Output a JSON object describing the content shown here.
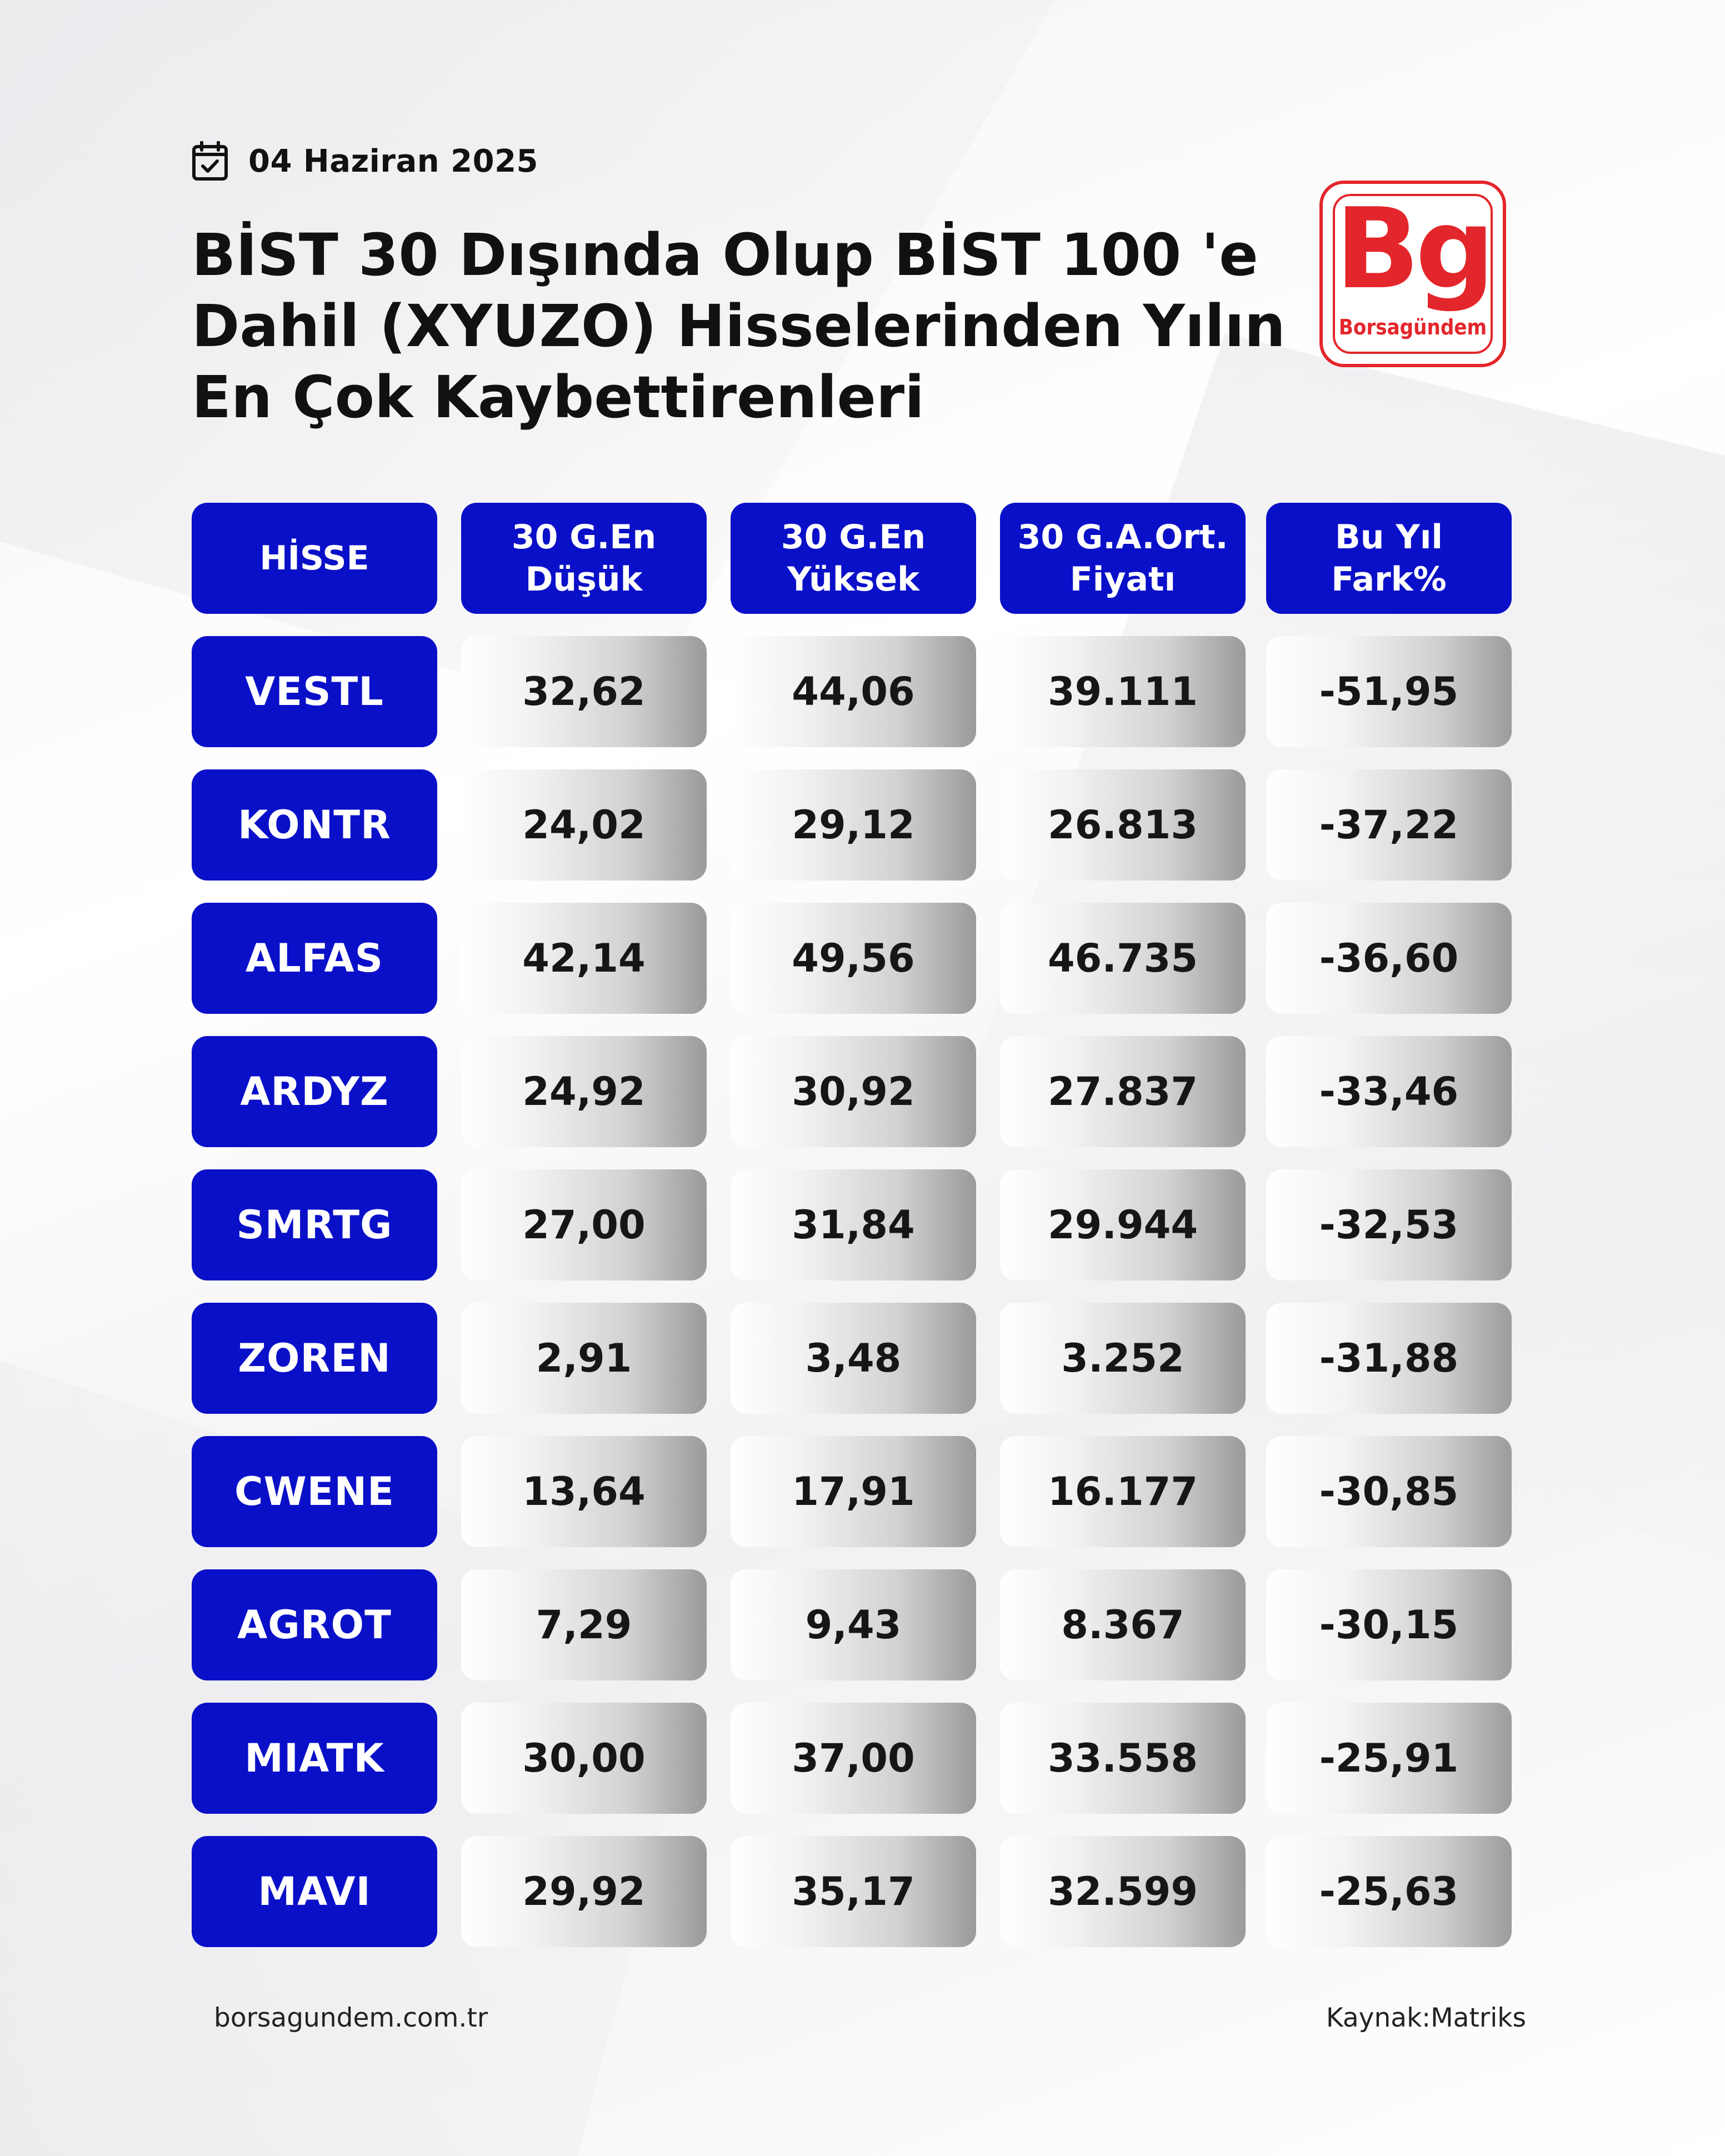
{
  "header": {
    "date": "04 Haziran 2025",
    "title_lines": [
      "BİST 30 Dışında Olup BİST 100 'e",
      "Dahil (XYUZO) Hisselerinden Yılın",
      "En Çok Kaybettirenleri"
    ]
  },
  "logo": {
    "mark": "Bg",
    "name": "Borsagündem",
    "color": "#e3262b"
  },
  "table": {
    "header_color": "#0a10c8",
    "columns": [
      {
        "lines": [
          "HİSSE"
        ]
      },
      {
        "lines": [
          "30 G.En",
          "Düşük"
        ]
      },
      {
        "lines": [
          "30 G.En",
          "Yüksek"
        ]
      },
      {
        "lines": [
          "30 G.A.Ort.",
          "Fiyatı"
        ]
      },
      {
        "lines": [
          "Bu Yıl",
          "Fark%"
        ]
      }
    ],
    "rows": [
      {
        "hisse": "VESTL",
        "dusuk": "32,62",
        "yuksek": "44,06",
        "ort": "39.111",
        "fark": "-51,95"
      },
      {
        "hisse": "KONTR",
        "dusuk": "24,02",
        "yuksek": "29,12",
        "ort": "26.813",
        "fark": "-37,22"
      },
      {
        "hisse": "ALFAS",
        "dusuk": "42,14",
        "yuksek": "49,56",
        "ort": "46.735",
        "fark": "-36,60"
      },
      {
        "hisse": "ARDYZ",
        "dusuk": "24,92",
        "yuksek": "30,92",
        "ort": "27.837",
        "fark": "-33,46"
      },
      {
        "hisse": "SMRTG",
        "dusuk": "27,00",
        "yuksek": "31,84",
        "ort": "29.944",
        "fark": "-32,53"
      },
      {
        "hisse": "ZOREN",
        "dusuk": "2,91",
        "yuksek": "3,48",
        "ort": "3.252",
        "fark": "-31,88"
      },
      {
        "hisse": "CWENE",
        "dusuk": "13,64",
        "yuksek": "17,91",
        "ort": "16.177",
        "fark": "-30,85"
      },
      {
        "hisse": "AGROT",
        "dusuk": "7,29",
        "yuksek": "9,43",
        "ort": "8.367",
        "fark": "-30,15"
      },
      {
        "hisse": "MIATK",
        "dusuk": "30,00",
        "yuksek": "37,00",
        "ort": "33.558",
        "fark": "-25,91"
      },
      {
        "hisse": "MAVI",
        "dusuk": "29,92",
        "yuksek": "35,17",
        "ort": "32.599",
        "fark": "-25,63"
      }
    ]
  },
  "footer": {
    "website": "borsagundem.com.tr",
    "source": "Kaynak:Matriks"
  }
}
